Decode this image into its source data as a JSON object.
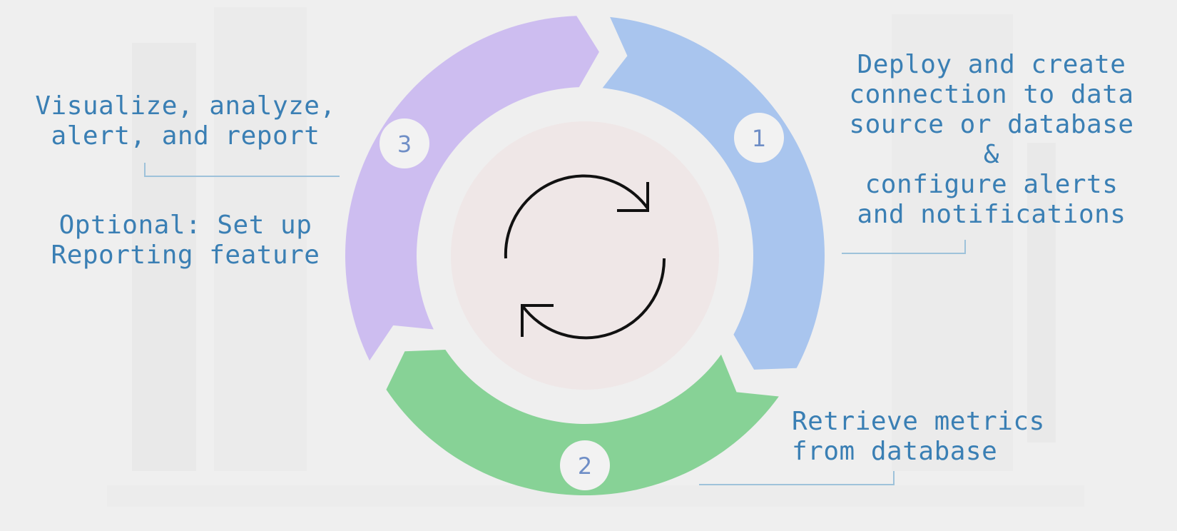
{
  "steps": [
    {
      "number": "1",
      "text": "Deploy and create\nconnection to data\nsource or database\n&\nconfigure alerts\nand notifications",
      "color": "#a9c5ee"
    },
    {
      "number": "2",
      "text": "Retrieve metrics\nfrom database",
      "color": "#87d296"
    },
    {
      "number": "3",
      "text": "Visualize, analyze,\nalert, and report",
      "color": "#cdbdf0"
    }
  ],
  "optional_note": "Optional: Set up\nReporting feature",
  "center_icon": "refresh-cycle-icon",
  "colors": {
    "background": "#efefef",
    "text": "#3a7fb4",
    "number_text": "#6f8ec6",
    "center_fill": "#efe7e7",
    "connector": "#9ec2da"
  }
}
